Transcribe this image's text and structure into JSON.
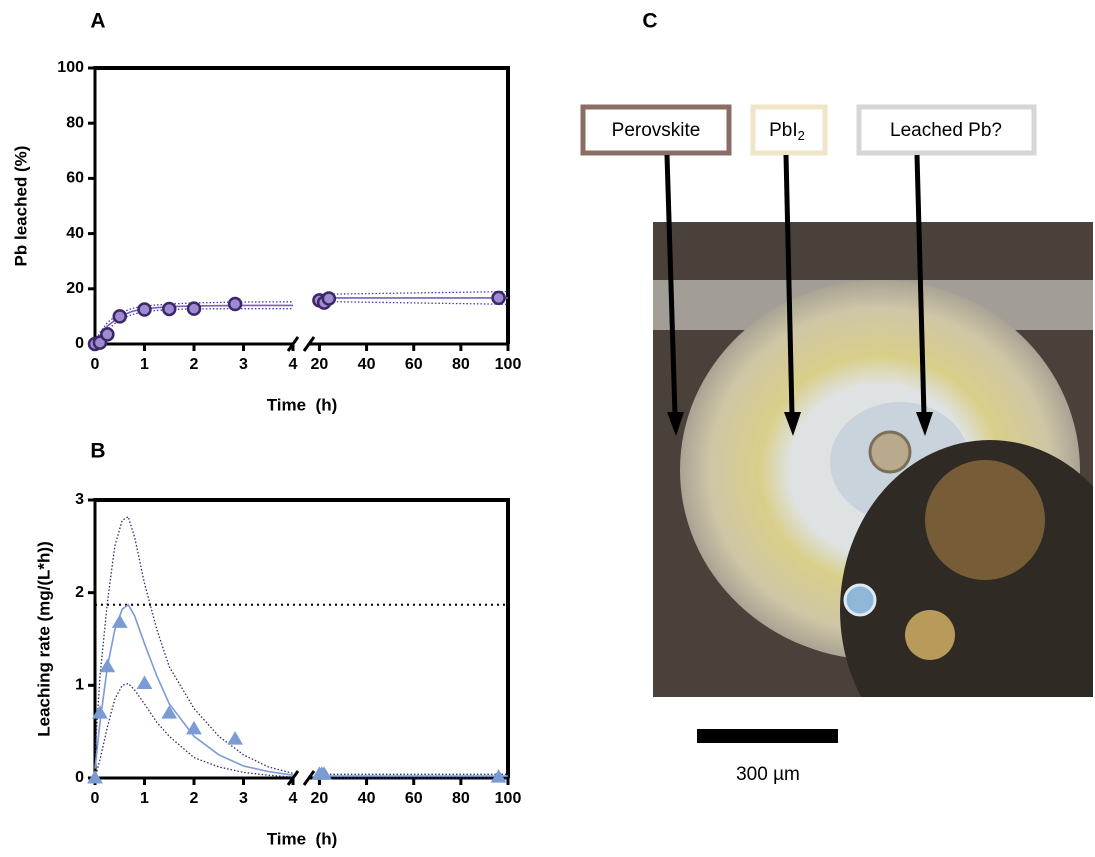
{
  "chart_data": [
    {
      "type": "scatter",
      "panel": "A",
      "y_label": "Pb leached (%)",
      "x_label": "Time  (h)",
      "ylim": [
        0,
        100
      ],
      "yticks": [
        0,
        20,
        40,
        60,
        80,
        100
      ],
      "x_segments": [
        {
          "xlim": [
            0,
            4
          ],
          "xticks": [
            0,
            1,
            2,
            3,
            4
          ]
        },
        {
          "xlim": [
            16,
            100
          ],
          "xticks": [
            20,
            40,
            60,
            80,
            100
          ]
        }
      ],
      "marker": "circle",
      "points": {
        "color": "#a08ad0",
        "edgecolor": "#3a2868",
        "x": [
          0,
          0.1,
          0.25,
          0.5,
          1,
          1.5,
          2,
          2.83,
          20,
          22,
          24,
          96
        ],
        "y": [
          0,
          0.5,
          3.5,
          10,
          12.5,
          12.7,
          12.8,
          14.5,
          15.8,
          15,
          16.5,
          16.7
        ]
      },
      "fit": {
        "color": "#7a5fb5",
        "x": [
          0,
          0.1,
          0.25,
          0.5,
          0.75,
          1,
          1.5,
          2,
          3,
          4,
          null,
          20,
          100
        ],
        "y": [
          0,
          3,
          6.5,
          10,
          11.8,
          12.8,
          13.5,
          13.8,
          14,
          14,
          null,
          16.7,
          16.7
        ]
      },
      "band_color": "#3b3bc0",
      "band_upper": {
        "x": [
          0,
          0.1,
          0.25,
          0.5,
          0.75,
          1,
          1.5,
          2,
          3,
          4,
          null,
          20,
          100
        ],
        "y": [
          0.8,
          4.2,
          7.8,
          11.2,
          12.9,
          13.8,
          14.5,
          14.9,
          15.2,
          15.3,
          null,
          18,
          19
        ]
      },
      "band_lower": {
        "x": [
          0,
          0.1,
          0.25,
          0.5,
          0.75,
          1,
          1.5,
          2,
          3,
          4,
          null,
          20,
          100
        ],
        "y": [
          0,
          1.8,
          5.2,
          8.8,
          10.7,
          11.8,
          12.5,
          12.7,
          12.8,
          12.8,
          null,
          15.4,
          14.4
        ]
      }
    },
    {
      "type": "scatter",
      "panel": "B",
      "y_label": "Leaching rate (mg/(L*h))",
      "x_label": "Time  (h)",
      "ylim": [
        0,
        3
      ],
      "yticks": [
        0,
        1,
        2,
        3
      ],
      "x_segments": [
        {
          "xlim": [
            0,
            4
          ],
          "xticks": [
            0,
            1,
            2,
            3,
            4
          ]
        },
        {
          "xlim": [
            16,
            100
          ],
          "xticks": [
            20,
            40,
            60,
            80,
            100
          ]
        }
      ],
      "marker": "triangle",
      "points": {
        "color": "#7b9bd4",
        "edgecolor": "#7b9bd4",
        "x": [
          0,
          0.1,
          0.25,
          0.5,
          1,
          1.5,
          2,
          2.83,
          20,
          21,
          22,
          96
        ],
        "y": [
          0,
          0.7,
          1.2,
          1.68,
          1.02,
          0.7,
          0.53,
          0.42,
          0.04,
          0.04,
          0.04,
          0.01
        ]
      },
      "fit": {
        "color": "#7b9bd4",
        "x": [
          0,
          0.1,
          0.25,
          0.4,
          0.55,
          0.67,
          0.8,
          1,
          1.25,
          1.5,
          2,
          2.5,
          3,
          3.5,
          4,
          null,
          20,
          100
        ],
        "y": [
          0.1,
          0.6,
          1.2,
          1.6,
          1.82,
          1.87,
          1.75,
          1.45,
          1.1,
          0.8,
          0.45,
          0.25,
          0.13,
          0.07,
          0.03,
          null,
          0.02,
          0.02
        ]
      },
      "band_color": "#2a2a70",
      "band_upper": {
        "x": [
          0,
          0.1,
          0.25,
          0.4,
          0.55,
          0.67,
          0.8,
          1,
          1.25,
          1.5,
          2,
          2.5,
          3,
          3.5,
          4,
          null,
          20,
          100
        ],
        "y": [
          0.25,
          1.1,
          1.9,
          2.5,
          2.78,
          2.82,
          2.6,
          2.1,
          1.6,
          1.2,
          0.75,
          0.45,
          0.25,
          0.12,
          0.05,
          null,
          0.04,
          0.04
        ]
      },
      "band_lower": {
        "x": [
          0,
          0.1,
          0.25,
          0.4,
          0.55,
          0.67,
          0.8,
          1,
          1.25,
          1.5,
          2,
          2.5,
          3,
          3.5,
          4,
          null,
          20,
          100
        ],
        "y": [
          0,
          0.2,
          0.55,
          0.85,
          1.0,
          1.02,
          0.95,
          0.8,
          0.6,
          0.45,
          0.22,
          0.12,
          0.06,
          0.03,
          0.01,
          null,
          0.0,
          0.0
        ]
      },
      "reference_line": 1.87
    }
  ],
  "panel_c": {
    "panel": "C",
    "labels": [
      "Perovskite",
      {
        "main": "PbI",
        "sub": "2"
      },
      "Leached Pb?"
    ],
    "scale_bar": "300 µm"
  }
}
